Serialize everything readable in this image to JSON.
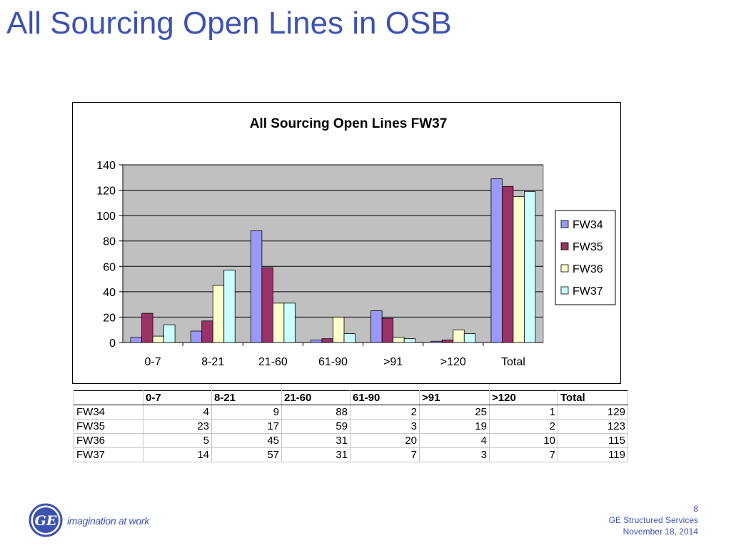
{
  "slide": {
    "title": "All Sourcing Open Lines in OSB",
    "tagline": "imagination at work",
    "logo_text": "GE",
    "page_number": "8",
    "company": "GE Structured Services",
    "date": "November 18, 2014"
  },
  "colors": {
    "title": "#3d52b0",
    "plot_bg": "#c0c0c0",
    "FW34": "#9999ff",
    "FW35": "#993366",
    "FW36": "#ffffcc",
    "FW37": "#ccffff"
  },
  "chart_data": {
    "type": "bar",
    "title": "All Sourcing Open Lines FW37",
    "xlabel": "",
    "ylabel": "",
    "categories": [
      "0-7",
      "8-21",
      "21-60",
      "61-90",
      ">91",
      ">120",
      "Total"
    ],
    "series": [
      {
        "name": "FW34",
        "values": [
          4,
          9,
          88,
          2,
          25,
          1,
          129
        ]
      },
      {
        "name": "FW35",
        "values": [
          23,
          17,
          59,
          3,
          19,
          2,
          123
        ]
      },
      {
        "name": "FW36",
        "values": [
          5,
          45,
          31,
          20,
          4,
          10,
          115
        ]
      },
      {
        "name": "FW37",
        "values": [
          14,
          57,
          31,
          7,
          3,
          7,
          119
        ]
      }
    ],
    "ylim": [
      0,
      140
    ],
    "yticks": [
      0,
      20,
      40,
      60,
      80,
      100,
      120,
      140
    ],
    "grid": true,
    "legend": "right"
  },
  "table": {
    "headers": [
      "0-7",
      "8-21",
      "21-60",
      "61-90",
      ">91",
      ">120",
      "Total"
    ],
    "rows": [
      {
        "label": "FW34",
        "values": [
          "4",
          "9",
          "88",
          "2",
          "25",
          "1",
          "129"
        ]
      },
      {
        "label": "FW35",
        "values": [
          "23",
          "17",
          "59",
          "3",
          "19",
          "2",
          "123"
        ]
      },
      {
        "label": "FW36",
        "values": [
          "5",
          "45",
          "31",
          "20",
          "4",
          "10",
          "115"
        ]
      },
      {
        "label": "FW37",
        "values": [
          "14",
          "57",
          "31",
          "7",
          "3",
          "7",
          "119"
        ]
      }
    ]
  }
}
